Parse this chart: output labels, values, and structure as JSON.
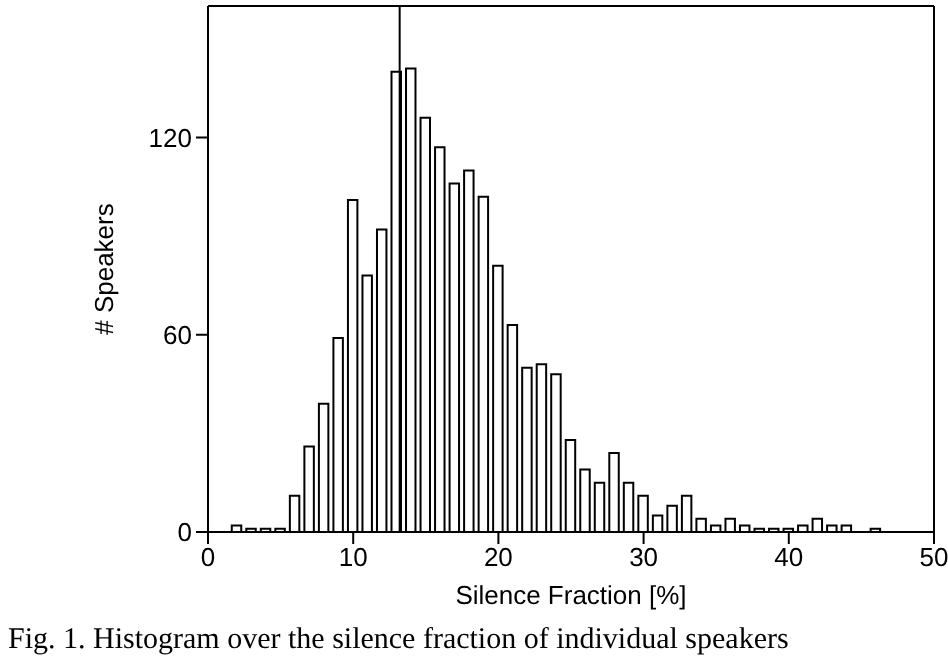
{
  "chart_data": {
    "type": "histogram",
    "xlabel": "Silence Fraction [%]",
    "ylabel": "# Speakers",
    "bins": [
      1.5,
      2.5,
      3.5,
      4.5,
      5.5,
      6.5,
      7.5,
      8.5,
      9.5,
      10.5,
      11.5,
      12.5,
      13.5,
      14.5,
      15.5,
      16.5,
      17.5,
      18.5,
      19.5,
      20.5,
      21.5,
      22.5,
      23.5,
      24.5,
      25.5,
      26.5,
      27.5,
      28.5,
      29.5,
      30.5,
      31.5,
      32.5,
      33.5,
      34.5,
      35.5,
      36.5,
      37.5,
      38.5,
      39.5,
      40.5,
      41.5,
      42.5,
      43.5,
      44.5,
      45.5,
      46.5
    ],
    "values": [
      2,
      1,
      1,
      1,
      11,
      26,
      39,
      59,
      101,
      78,
      92,
      140,
      141,
      126,
      117,
      106,
      110,
      102,
      81,
      63,
      50,
      51,
      48,
      28,
      19,
      15,
      24,
      15,
      11,
      5,
      8,
      11,
      4,
      2,
      4,
      2,
      1,
      1,
      1,
      2,
      4,
      2,
      2,
      0,
      1
    ],
    "color": "#ffffff",
    "xlim": [
      0,
      50
    ],
    "xticks": [
      0,
      10,
      20,
      30,
      40,
      50
    ],
    "ylim": [
      0,
      160
    ],
    "yticks": [
      0,
      60,
      120
    ],
    "ref_lines": [
      {
        "axis": "x",
        "value": 13.2,
        "color": "#000000"
      }
    ],
    "grid": false,
    "annotations": [
      "Fig. 1. Histogram over the silence fraction of individual speakers"
    ]
  }
}
